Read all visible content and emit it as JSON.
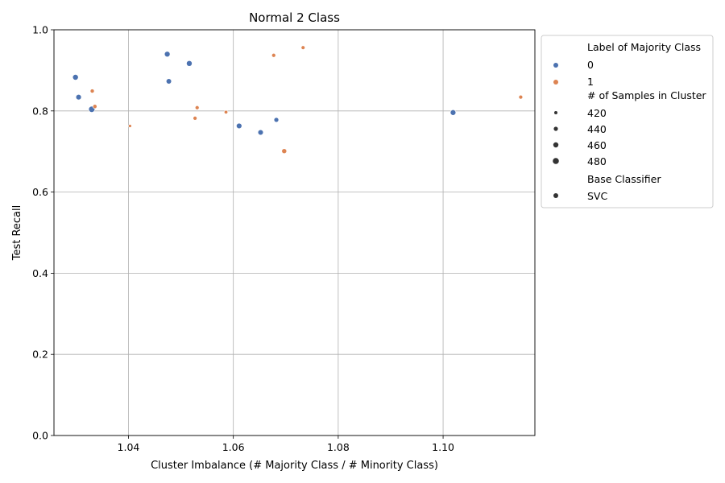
{
  "chart_data": {
    "type": "scatter",
    "title": "Normal 2 Class",
    "xlabel": "Cluster Imbalance (# Majority Class / # Minority Class)",
    "ylabel": "Test Recall",
    "xlim": [
      1.0258,
      1.1175
    ],
    "ylim": [
      0,
      1
    ],
    "x_ticks": [
      1.04,
      1.06,
      1.08,
      1.1
    ],
    "x_tick_labels": [
      "1.04",
      "1.06",
      "1.08",
      "1.10"
    ],
    "y_ticks": [
      0.0,
      0.2,
      0.4,
      0.6,
      0.8,
      1.0
    ],
    "y_tick_labels": [
      "0.0",
      "0.2",
      "0.4",
      "0.6",
      "0.8",
      "1.0"
    ],
    "grid": true,
    "legend_placement": "outside-upper-right",
    "series": [
      {
        "name": "0",
        "color": "#4c72b0",
        "points": [
          {
            "x": 1.0299,
            "y": 0.883,
            "size": 472
          },
          {
            "x": 1.0305,
            "y": 0.834,
            "size": 468
          },
          {
            "x": 1.033,
            "y": 0.804,
            "size": 482
          },
          {
            "x": 1.0474,
            "y": 0.94,
            "size": 470
          },
          {
            "x": 1.0477,
            "y": 0.873,
            "size": 464
          },
          {
            "x": 1.0516,
            "y": 0.917,
            "size": 472
          },
          {
            "x": 1.0611,
            "y": 0.763,
            "size": 468
          },
          {
            "x": 1.0652,
            "y": 0.747,
            "size": 466
          },
          {
            "x": 1.0682,
            "y": 0.778,
            "size": 452
          },
          {
            "x": 1.1019,
            "y": 0.796,
            "size": 470
          }
        ]
      },
      {
        "name": "1",
        "color": "#dd8452",
        "points": [
          {
            "x": 1.0331,
            "y": 0.849,
            "size": 438
          },
          {
            "x": 1.0336,
            "y": 0.811,
            "size": 440
          },
          {
            "x": 1.0403,
            "y": 0.763,
            "size": 418
          },
          {
            "x": 1.0527,
            "y": 0.782,
            "size": 436
          },
          {
            "x": 1.0531,
            "y": 0.808,
            "size": 436
          },
          {
            "x": 1.0586,
            "y": 0.797,
            "size": 428
          },
          {
            "x": 1.0677,
            "y": 0.937,
            "size": 436
          },
          {
            "x": 1.0697,
            "y": 0.701,
            "size": 456
          },
          {
            "x": 1.0733,
            "y": 0.956,
            "size": 434
          },
          {
            "x": 1.1148,
            "y": 0.834,
            "size": 436
          }
        ]
      }
    ],
    "legend": {
      "hue_title": "Label of Majority Class",
      "hue_entries": [
        {
          "label": "0",
          "color": "#4c72b0"
        },
        {
          "label": "1",
          "color": "#dd8452"
        }
      ],
      "size_title": "# of Samples in Cluster",
      "size_entries": [
        {
          "label": "420",
          "size": 420
        },
        {
          "label": "440",
          "size": 440
        },
        {
          "label": "460",
          "size": 460
        },
        {
          "label": "480",
          "size": 480
        }
      ],
      "style_title": "Base Classifier",
      "style_entries": [
        {
          "label": "SVC"
        }
      ]
    }
  }
}
